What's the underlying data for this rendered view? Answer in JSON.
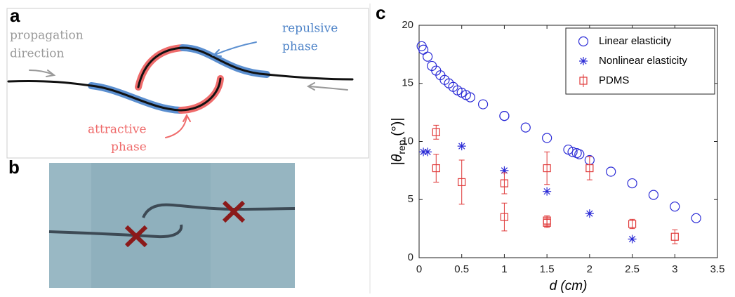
{
  "panels": {
    "a": {
      "label": "a",
      "propagation": [
        "propagation",
        "direction"
      ],
      "repulsive": [
        "repulsive",
        "phase"
      ],
      "attractive": [
        "attractive",
        "phase"
      ]
    },
    "b": {
      "label": "b"
    },
    "c": {
      "label": "c"
    }
  },
  "chart_data": {
    "type": "scatter",
    "xlabel": "d (cm)",
    "ylabel": [
      "|θ",
      "rep",
      " (°)|"
    ],
    "xlim": [
      0,
      3.5
    ],
    "xticks": [
      0,
      0.5,
      1,
      1.5,
      2,
      2.5,
      3,
      3.5
    ],
    "ylim": [
      0,
      20
    ],
    "yticks": [
      0,
      5,
      10,
      15,
      20
    ],
    "legend": "top-right",
    "series": [
      {
        "name": "Linear elasticity",
        "color": "#2a2ad6",
        "marker": "circle",
        "x": [
          0.03,
          0.05,
          0.1,
          0.15,
          0.2,
          0.25,
          0.3,
          0.35,
          0.4,
          0.45,
          0.5,
          0.55,
          0.6,
          0.75,
          1.0,
          1.0,
          1.25,
          1.5,
          1.75,
          1.8,
          1.85,
          1.88,
          2.0,
          2.25,
          2.5,
          2.75,
          3.0,
          3.25
        ],
        "values": [
          18.2,
          17.9,
          17.3,
          16.5,
          16.1,
          15.7,
          15.3,
          15.0,
          14.7,
          14.4,
          14.2,
          14.0,
          13.8,
          13.2,
          12.2,
          12.2,
          11.2,
          10.3,
          9.3,
          9.1,
          9.0,
          8.9,
          8.4,
          7.4,
          6.4,
          5.4,
          4.4,
          3.4
        ]
      },
      {
        "name": "Nonlinear elasticity",
        "color": "#2a2ad6",
        "marker": "asterisk",
        "x": [
          0.05,
          0.1,
          0.5,
          1.0,
          1.5,
          2.0,
          2.5
        ],
        "values": [
          9.1,
          9.1,
          9.6,
          7.5,
          5.7,
          3.8,
          1.6
        ]
      },
      {
        "name": "PDMS",
        "color": "#e03a3a",
        "marker": "square",
        "x": [
          0.2,
          0.2,
          0.5,
          1.0,
          1.0,
          1.5,
          1.5,
          1.5,
          2.0,
          2.5,
          3.0
        ],
        "values": [
          10.8,
          7.7,
          6.5,
          6.4,
          3.5,
          7.7,
          3.2,
          3.0,
          7.7,
          2.9,
          1.8
        ],
        "errors": [
          0.6,
          1.2,
          1.9,
          0.9,
          1.2,
          1.4,
          0.4,
          0.4,
          1.0,
          0.4,
          0.6
        ]
      }
    ]
  }
}
